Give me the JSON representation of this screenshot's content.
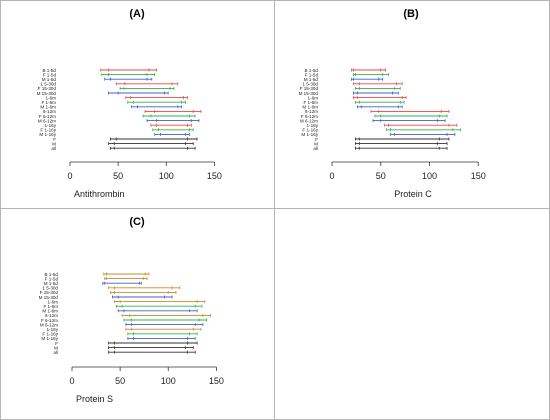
{
  "chart_data": [
    {
      "type": "range",
      "panel_label": "(A)",
      "xlabel": "Antithrombin",
      "xlim": [
        0,
        160
      ],
      "xticks": [
        0,
        50,
        100,
        150
      ],
      "categories": [
        "B 1-5d",
        "F 1-5d",
        "M 1-5d",
        "1 5-30d",
        "F 15-30d",
        "M 15-30d",
        "1-6m",
        "F 1-6m",
        "M 1-6m",
        "6-12m",
        "F 6-12m",
        "M 6-12m",
        "1-16y",
        "F 1-16y",
        "M 1-16y",
        "F",
        "M",
        "all"
      ],
      "colors": [
        "#e8474a",
        "#34b24a",
        "#3f5fd1",
        "#e8474a",
        "#34b24a",
        "#3f5fd1",
        "#e8474a",
        "#34b24a",
        "#3f5fd1",
        "#e8474a",
        "#34b24a",
        "#3f5fd1",
        "#e8474a",
        "#34b24a",
        "#3f5fd1",
        "#333333",
        "#333333",
        "#333333"
      ],
      "low": [
        32,
        33,
        36,
        48,
        52,
        40,
        58,
        60,
        64,
        78,
        76,
        80,
        84,
        86,
        88,
        42,
        40,
        42
      ],
      "mid": [
        40,
        40,
        42,
        57,
        56,
        50,
        63,
        66,
        70,
        88,
        84,
        90,
        90,
        92,
        94,
        48,
        46,
        46
      ],
      "high": [
        90,
        88,
        85,
        112,
        108,
        102,
        122,
        120,
        116,
        136,
        130,
        134,
        126,
        128,
        124,
        132,
        128,
        130
      ],
      "mid2": [
        82,
        80,
        80,
        106,
        104,
        98,
        118,
        116,
        112,
        128,
        124,
        126,
        122,
        124,
        120,
        122,
        120,
        122
      ]
    },
    {
      "type": "range",
      "panel_label": "(B)",
      "xlabel": "Protein C",
      "xlim": [
        0,
        160
      ],
      "xticks": [
        0,
        50,
        100,
        150
      ],
      "categories": [
        "B 1-5d",
        "F 1-5d",
        "M 1-5d",
        "1 5-30d",
        "F 15-30d",
        "M 15-30d",
        "1-6m",
        "F 1-6m",
        "M 1-6m",
        "6-12m",
        "F 6-12m",
        "M 6-12m",
        "1-16y",
        "F 1-16y",
        "M 1-16y",
        "F",
        "M",
        "all"
      ],
      "colors": [
        "#e8474a",
        "#34b24a",
        "#3f5fd1",
        "#e8474a",
        "#34b24a",
        "#3f5fd1",
        "#e8474a",
        "#34b24a",
        "#3f5fd1",
        "#e8474a",
        "#34b24a",
        "#3f5fd1",
        "#e8474a",
        "#34b24a",
        "#3f5fd1",
        "#333333",
        "#333333",
        "#333333"
      ],
      "low": [
        20,
        22,
        20,
        22,
        24,
        22,
        22,
        24,
        26,
        40,
        44,
        42,
        54,
        56,
        60,
        24,
        24,
        24
      ],
      "mid": [
        22,
        24,
        22,
        28,
        28,
        26,
        26,
        28,
        30,
        48,
        50,
        50,
        58,
        60,
        64,
        28,
        28,
        28
      ],
      "high": [
        55,
        58,
        52,
        72,
        70,
        68,
        76,
        74,
        72,
        120,
        118,
        116,
        128,
        132,
        126,
        120,
        118,
        118
      ],
      "mid2": [
        50,
        52,
        48,
        66,
        64,
        62,
        72,
        70,
        68,
        112,
        110,
        108,
        120,
        124,
        118,
        110,
        108,
        110
      ]
    },
    {
      "type": "range",
      "panel_label": "(C)",
      "xlabel": "Protein S",
      "xlim": [
        0,
        160
      ],
      "xticks": [
        0,
        50,
        100,
        150
      ],
      "categories": [
        "B 1-5d",
        "F 1-5d",
        "M 1-5d",
        "1 5-30d",
        "F 15-30d",
        "M 15-30d",
        "1-6m",
        "F 1-6m",
        "M 1-6m",
        "6-12m",
        "F 6-12m",
        "M 6-12m",
        "1-16y",
        "F 1-16y",
        "M 1-16y",
        "F",
        "M",
        "all"
      ],
      "colors": [
        "#c98a2b",
        "#c98a2b",
        "#3f5fd1",
        "#c98a2b",
        "#c98a2b",
        "#3f5fd1",
        "#c98a2b",
        "#34b24a",
        "#3f5fd1",
        "#c98a2b",
        "#34b24a",
        "#3f5fd1",
        "#c98a2b",
        "#34b24a",
        "#3f5fd1",
        "#333333",
        "#333333",
        "#333333"
      ],
      "low": [
        33,
        34,
        32,
        38,
        40,
        42,
        44,
        46,
        48,
        52,
        54,
        56,
        56,
        58,
        58,
        38,
        38,
        38
      ],
      "mid": [
        36,
        36,
        34,
        44,
        44,
        48,
        50,
        52,
        54,
        60,
        62,
        62,
        62,
        64,
        64,
        44,
        44,
        44
      ],
      "high": [
        80,
        78,
        72,
        112,
        108,
        104,
        138,
        135,
        130,
        144,
        140,
        136,
        134,
        130,
        128,
        130,
        126,
        128
      ],
      "mid2": [
        76,
        74,
        70,
        104,
        100,
        96,
        130,
        128,
        122,
        136,
        132,
        128,
        126,
        122,
        120,
        120,
        118,
        120
      ]
    }
  ]
}
